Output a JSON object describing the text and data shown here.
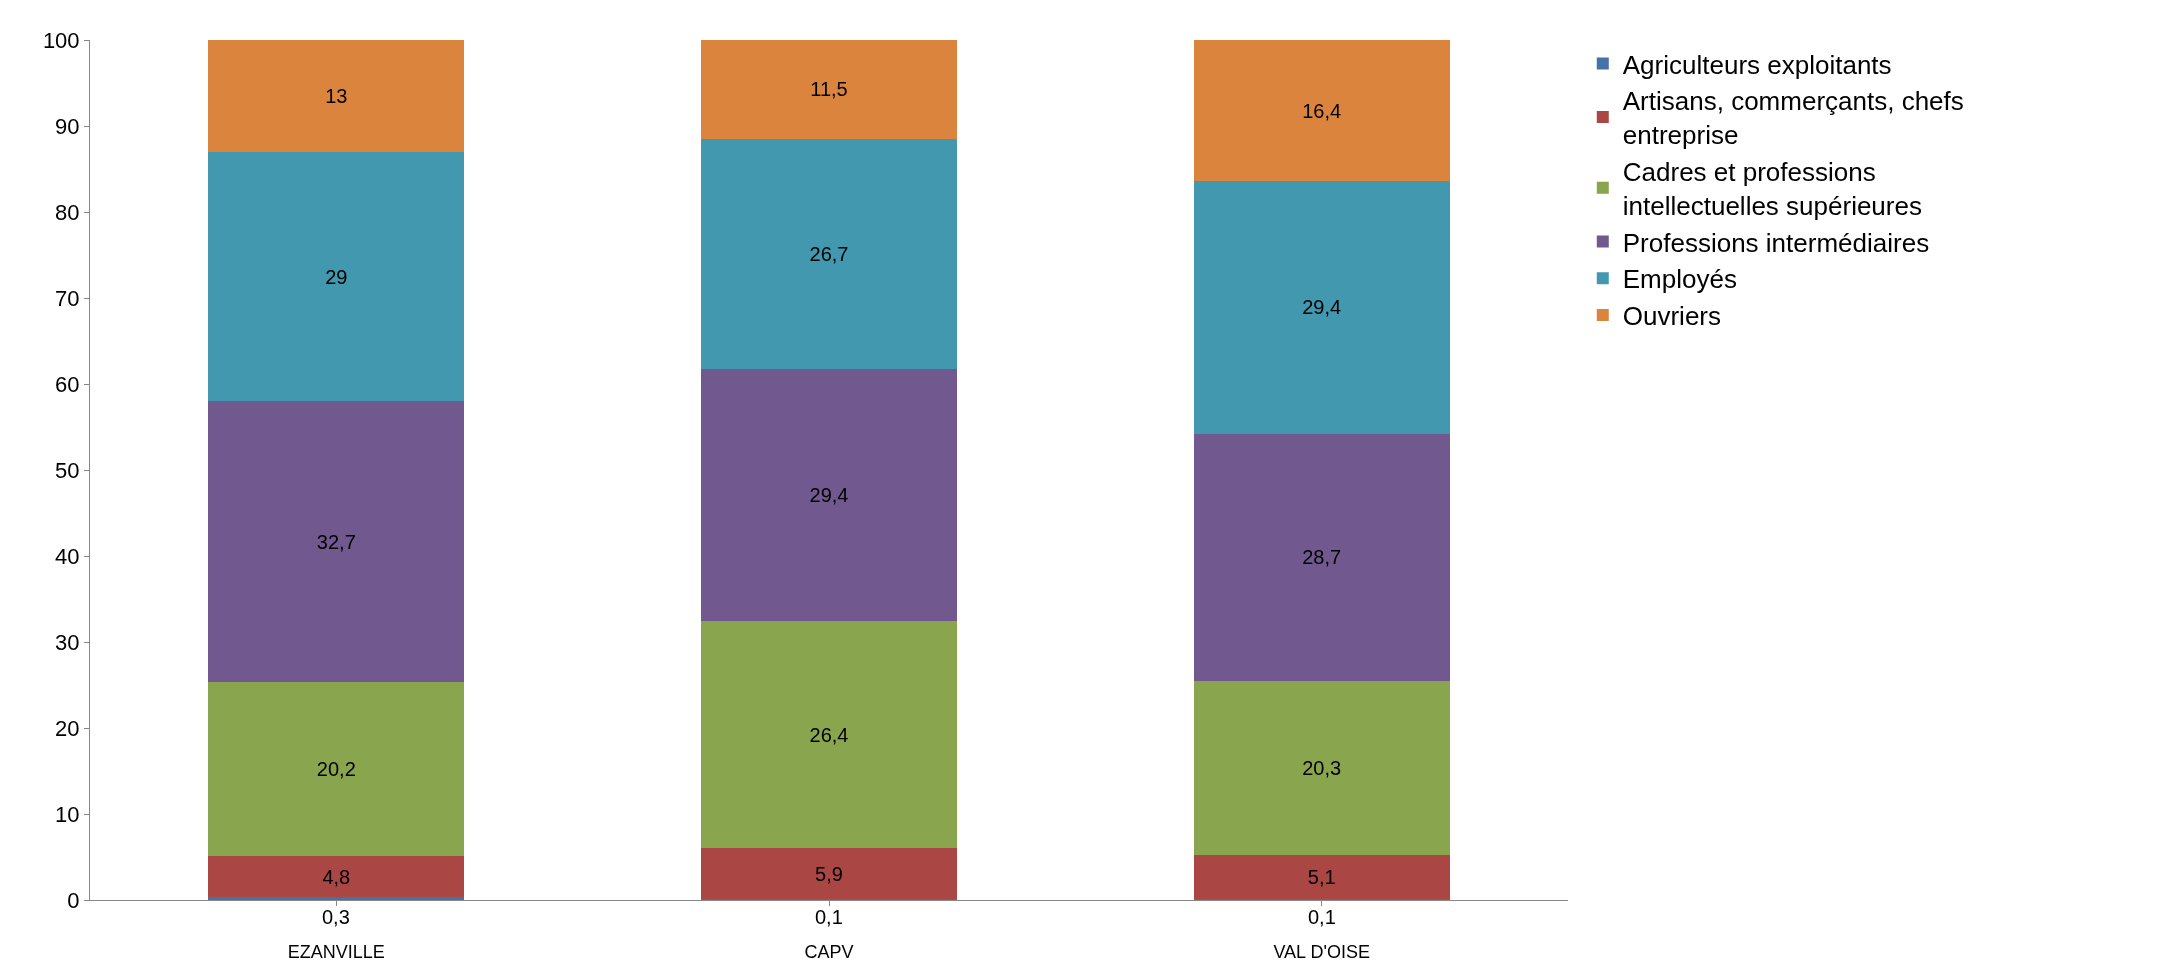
{
  "chart_data": {
    "type": "bar",
    "stacked": true,
    "categories": [
      "EZANVILLE",
      "CAPV",
      "VAL D'OISE"
    ],
    "series": [
      {
        "name": "Agriculteurs exploitants",
        "color": "#4572a7",
        "values": [
          0.3,
          0.1,
          0.1
        ],
        "value_labels": [
          "0,3",
          "0,1",
          "0,1"
        ]
      },
      {
        "name": "Artisans, commerçants, chefs entreprise",
        "color": "#aa4643",
        "values": [
          4.8,
          5.9,
          5.1
        ],
        "value_labels": [
          "4,8",
          "5,9",
          "5,1"
        ]
      },
      {
        "name": "Cadres et professions intellectuelles supérieures",
        "color": "#89a54e",
        "values": [
          20.2,
          26.4,
          20.3
        ],
        "value_labels": [
          "20,2",
          "26,4",
          "20,3"
        ]
      },
      {
        "name": "Professions intermédiaires",
        "color": "#71588f",
        "values": [
          32.7,
          29.4,
          28.7
        ],
        "value_labels": [
          "32,7",
          "29,4",
          "28,7"
        ]
      },
      {
        "name": "Employés",
        "color": "#4198af",
        "values": [
          29,
          26.7,
          29.4
        ],
        "value_labels": [
          "29",
          "26,7",
          "29,4"
        ]
      },
      {
        "name": "Ouvriers",
        "color": "#db843d",
        "values": [
          13,
          11.5,
          16.4
        ],
        "value_labels": [
          "13",
          "11,5",
          "16,4"
        ]
      }
    ],
    "ylim": [
      0,
      100
    ],
    "yticks": [
      0,
      10,
      20,
      30,
      40,
      50,
      60,
      70,
      80,
      90,
      100
    ],
    "legend": "right"
  }
}
